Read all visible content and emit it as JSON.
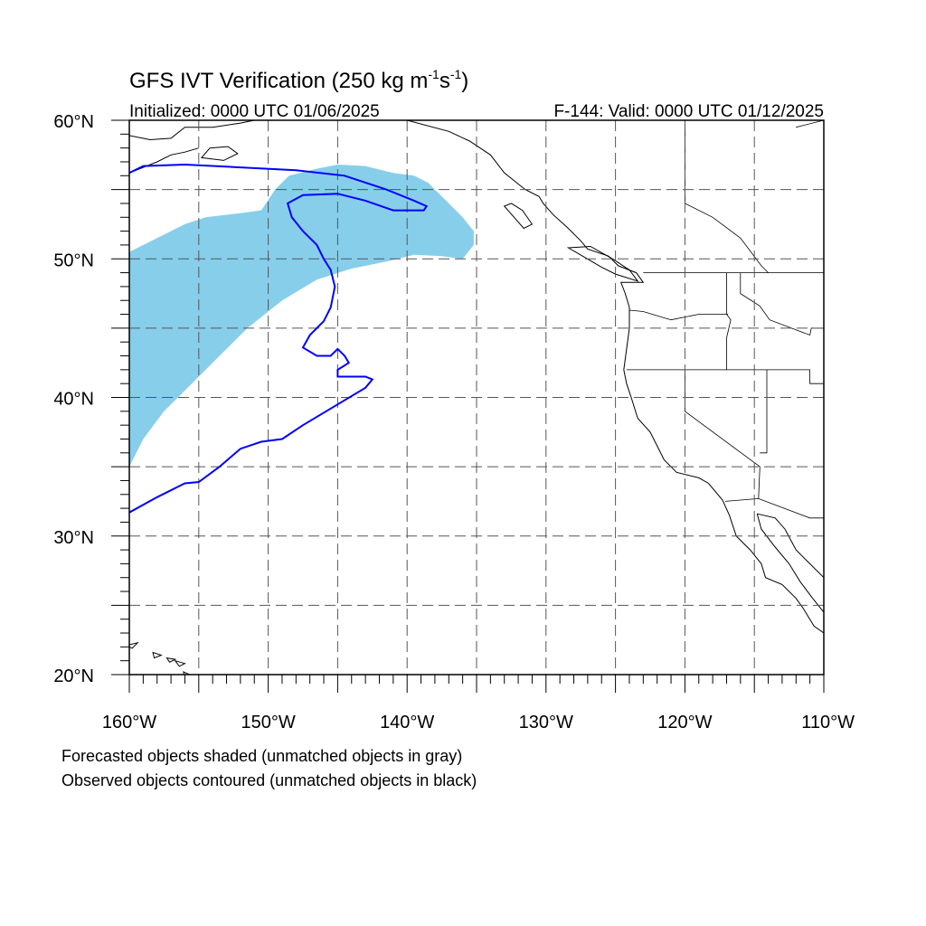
{
  "title": {
    "main": "GFS IVT Verification (250 kg m",
    "sup1": "-1",
    "mid": "s",
    "sup2": "-1",
    "end": ")"
  },
  "subtitle_left": "Initialized: 0000 UTC 01/06/2025",
  "subtitle_right": "F-144: Valid: 0000 UTC 01/12/2025",
  "lat_labels": [
    {
      "lat": 60,
      "text": "60°N"
    },
    {
      "lat": 50,
      "text": "50°N"
    },
    {
      "lat": 40,
      "text": "40°N"
    },
    {
      "lat": 30,
      "text": "30°N"
    },
    {
      "lat": 20,
      "text": "20°N"
    }
  ],
  "lon_labels": [
    {
      "lon": -160,
      "text": "160°W"
    },
    {
      "lon": -150,
      "text": "150°W"
    },
    {
      "lon": -140,
      "text": "140°W"
    },
    {
      "lon": -130,
      "text": "130°W"
    },
    {
      "lon": -120,
      "text": "120°W"
    },
    {
      "lon": -110,
      "text": "110°W"
    }
  ],
  "notes": [
    "Forecasted objects shaded (unmatched objects in gray)",
    "Observed objects contoured (unmatched objects in black)"
  ],
  "map": {
    "lon_range": [
      -160,
      -110
    ],
    "lat_range": [
      20,
      60
    ],
    "gridline_lons": [
      -155,
      -150,
      -145,
      -140,
      -135,
      -130,
      -125,
      -120,
      -115
    ],
    "gridline_lats": [
      25,
      30,
      35,
      40,
      45,
      50,
      55
    ],
    "colors": {
      "forecast_fill": "#87ceeb",
      "observed_contour": "#0000ff",
      "coastline": "#000000",
      "grid": "#555555"
    },
    "forecast_object": [
      [
        -160,
        35
      ],
      [
        -159,
        37
      ],
      [
        -157.5,
        39
      ],
      [
        -155.5,
        41
      ],
      [
        -153.5,
        43
      ],
      [
        -151.5,
        45
      ],
      [
        -149,
        47
      ],
      [
        -146.5,
        48.5
      ],
      [
        -144,
        49.3
      ],
      [
        -141.5,
        49.8
      ],
      [
        -139.5,
        50.3
      ],
      [
        -137.5,
        50.2
      ],
      [
        -136,
        50
      ],
      [
        -135.2,
        51
      ],
      [
        -135.2,
        52
      ],
      [
        -136,
        53
      ],
      [
        -137,
        54
      ],
      [
        -138.5,
        55.5
      ],
      [
        -139.5,
        56
      ],
      [
        -141,
        56.2
      ],
      [
        -143,
        56.7
      ],
      [
        -145,
        56.8
      ],
      [
        -146.5,
        56.5
      ],
      [
        -148.5,
        56
      ],
      [
        -149.5,
        55
      ],
      [
        -150.5,
        53.5
      ],
      [
        -152,
        53.3
      ],
      [
        -154.5,
        53
      ],
      [
        -156,
        52.5
      ],
      [
        -158,
        51.5
      ],
      [
        -160,
        50.5
      ]
    ],
    "observed_contour": [
      [
        -160,
        56.2
      ],
      [
        -159,
        56.7
      ],
      [
        -156,
        56.8
      ],
      [
        -152,
        56.6
      ],
      [
        -148,
        56.4
      ],
      [
        -144.5,
        56
      ],
      [
        -141.5,
        55
      ],
      [
        -139.5,
        54.2
      ],
      [
        -138.6,
        53.8
      ],
      [
        -138.8,
        53.5
      ],
      [
        -141,
        53.5
      ],
      [
        -143,
        54.2
      ],
      [
        -145,
        54.7
      ],
      [
        -147.5,
        54.6
      ],
      [
        -148.6,
        54
      ],
      [
        -148.3,
        53
      ],
      [
        -147.5,
        52
      ],
      [
        -146.5,
        51
      ],
      [
        -146,
        50
      ],
      [
        -145.5,
        49.2
      ],
      [
        -145.2,
        48
      ],
      [
        -145.5,
        46.5
      ],
      [
        -146,
        45.5
      ],
      [
        -147,
        44.5
      ],
      [
        -147.5,
        43.6
      ],
      [
        -146.5,
        43
      ],
      [
        -145.5,
        43
      ],
      [
        -145,
        43.5
      ],
      [
        -144.5,
        43
      ],
      [
        -144.2,
        42.5
      ],
      [
        -145,
        42
      ],
      [
        -145,
        41.5
      ],
      [
        -143,
        41.5
      ],
      [
        -142.5,
        41.3
      ],
      [
        -143,
        40.7
      ],
      [
        -145,
        39.5
      ],
      [
        -147.5,
        38
      ],
      [
        -149,
        37
      ],
      [
        -150.5,
        36.8
      ],
      [
        -152,
        36.3
      ],
      [
        -153.5,
        35
      ],
      [
        -155,
        33.9
      ],
      [
        -156,
        33.8
      ],
      [
        -158,
        32.8
      ],
      [
        -160,
        31.7
      ]
    ],
    "coastline": [
      [
        -140,
        60
      ],
      [
        -137,
        59.2
      ],
      [
        -135.5,
        58.5
      ],
      [
        -134,
        57.5
      ],
      [
        -133,
        56.2
      ],
      [
        -131.5,
        55
      ],
      [
        -130.5,
        54.5
      ],
      [
        -130.2,
        54
      ],
      [
        -129.5,
        53.2
      ],
      [
        -128.5,
        52.3
      ],
      [
        -127.5,
        51.3
      ],
      [
        -127,
        50.7
      ],
      [
        -125.5,
        50.2
      ],
      [
        -124.8,
        49.5
      ],
      [
        -123.5,
        49
      ],
      [
        -123,
        48.3
      ],
      [
        -124.6,
        48.3
      ],
      [
        -124.3,
        47.5
      ],
      [
        -124,
        46.5
      ],
      [
        -124,
        45
      ],
      [
        -124.2,
        43.5
      ],
      [
        -124.4,
        42
      ],
      [
        -124.2,
        41
      ],
      [
        -123.8,
        39.8
      ],
      [
        -123.4,
        38.5
      ],
      [
        -122.5,
        37.5
      ],
      [
        -122,
        36.5
      ],
      [
        -121.5,
        35.5
      ],
      [
        -120.6,
        34.6
      ],
      [
        -119,
        34.2
      ],
      [
        -118.3,
        33.8
      ],
      [
        -117.3,
        32.6
      ],
      [
        -116.8,
        31.5
      ],
      [
        -116.3,
        30
      ],
      [
        -115.3,
        29
      ],
      [
        -114.5,
        28
      ],
      [
        -114.2,
        27
      ],
      [
        -113,
        26.5
      ],
      [
        -112,
        25.5
      ],
      [
        -111.5,
        24.8
      ],
      [
        -110.7,
        23.5
      ],
      [
        -110,
        23
      ]
    ],
    "baja_east_coast": [
      [
        -110,
        24.5
      ],
      [
        -110.8,
        25.5
      ],
      [
        -111.7,
        26.7
      ],
      [
        -112.5,
        28
      ],
      [
        -113.5,
        29.2
      ],
      [
        -114.5,
        30.5
      ],
      [
        -114.8,
        31.6
      ]
    ],
    "mainland_mexico_coast": [
      [
        -114.8,
        31.6
      ],
      [
        -113.5,
        31.3
      ],
      [
        -112.8,
        30.5
      ],
      [
        -112,
        29
      ],
      [
        -111,
        28
      ],
      [
        -110,
        27
      ]
    ],
    "vancouver_island": [
      [
        -128.4,
        50.8
      ],
      [
        -127.2,
        50.1
      ],
      [
        -126,
        49.4
      ],
      [
        -125,
        48.9
      ],
      [
        -123.4,
        48.4
      ],
      [
        -124,
        49.2
      ],
      [
        -125.2,
        50
      ],
      [
        -126.8,
        50.9
      ],
      [
        -128.4,
        50.8
      ]
    ],
    "haida_gwaii": [
      [
        -132.5,
        54
      ],
      [
        -131.7,
        53.5
      ],
      [
        -131,
        52.5
      ],
      [
        -131.6,
        52.2
      ],
      [
        -132.3,
        53
      ],
      [
        -133,
        53.8
      ],
      [
        -132.5,
        54
      ]
    ],
    "alaska_west": [
      [
        -160,
        58.9
      ],
      [
        -158.5,
        58.6
      ],
      [
        -157,
        58.7
      ],
      [
        -156,
        59.5
      ],
      [
        -154,
        59.5
      ],
      [
        -152,
        59.8
      ],
      [
        -151,
        60
      ]
    ],
    "alaska_peninsula": [
      [
        -160,
        56.2
      ],
      [
        -159,
        56.6
      ],
      [
        -158,
        57
      ],
      [
        -157,
        57.5
      ],
      [
        -156,
        57.7
      ],
      [
        -155,
        58
      ]
    ],
    "kodiak": [
      [
        -154.8,
        57.3
      ],
      [
        -153.2,
        57.1
      ],
      [
        -152.2,
        57.6
      ],
      [
        -152.9,
        58.1
      ],
      [
        -154.2,
        58.0
      ],
      [
        -154.8,
        57.3
      ]
    ],
    "hawaii_islands": [
      [
        [
          -160.2,
          22.1
        ],
        [
          -159.4,
          22.3
        ],
        [
          -159.8,
          21.9
        ],
        [
          -160.2,
          22.1
        ]
      ],
      [
        [
          -158.3,
          21.6
        ],
        [
          -157.7,
          21.4
        ],
        [
          -158.2,
          21.2
        ],
        [
          -158.3,
          21.6
        ]
      ],
      [
        [
          -157.3,
          21.2
        ],
        [
          -156.7,
          21.1
        ],
        [
          -157.1,
          20.9
        ],
        [
          -157.3,
          21.2
        ]
      ],
      [
        [
          -156.7,
          21
        ],
        [
          -156,
          20.8
        ],
        [
          -156.4,
          20.6
        ],
        [
          -156.7,
          21
        ]
      ],
      [
        [
          -156.1,
          20.2
        ],
        [
          -154.8,
          19.6
        ],
        [
          -155.9,
          19.1
        ],
        [
          -156.1,
          20.2
        ]
      ]
    ],
    "state_borders": [
      [
        [
          -123,
          49
        ],
        [
          -110,
          49
        ]
      ],
      [
        [
          -117,
          49
        ],
        [
          -117,
          46
        ],
        [
          -116.7,
          45.6
        ],
        [
          -117,
          44.3
        ],
        [
          -117,
          42
        ]
      ],
      [
        [
          -124.2,
          42
        ],
        [
          -111,
          42
        ],
        [
          -111,
          41
        ],
        [
          -110,
          41
        ]
      ],
      [
        [
          -120,
          42
        ],
        [
          -120,
          39
        ],
        [
          -114.6,
          35
        ],
        [
          -114.7,
          32.7
        ]
      ],
      [
        [
          -124,
          46.3
        ],
        [
          -123,
          46.2
        ],
        [
          -121,
          45.6
        ],
        [
          -119,
          46
        ],
        [
          -116.9,
          46
        ]
      ],
      [
        [
          -114.1,
          42
        ],
        [
          -114.1,
          36
        ],
        [
          -114.6,
          36
        ]
      ],
      [
        [
          -117.1,
          32.5
        ],
        [
          -114.7,
          32.7
        ],
        [
          -111,
          31.3
        ],
        [
          -110,
          31.3
        ]
      ],
      [
        [
          -116,
          49
        ],
        [
          -116,
          47.5
        ],
        [
          -114.6,
          46.6
        ],
        [
          -113.9,
          45.6
        ],
        [
          -111,
          44.5
        ],
        [
          -110.9,
          45
        ],
        [
          -110,
          45
        ]
      ]
    ],
    "bc_inland_borders": [
      [
        [
          -120,
          60
        ],
        [
          -120,
          54
        ],
        [
          -118,
          53
        ],
        [
          -116,
          51.5
        ],
        [
          -114.5,
          49.5
        ],
        [
          -114,
          49
        ]
      ],
      [
        [
          -140,
          60
        ],
        [
          -141,
          60
        ]
      ],
      [
        [
          -110,
          60
        ],
        [
          -112,
          59.5
        ]
      ]
    ]
  }
}
